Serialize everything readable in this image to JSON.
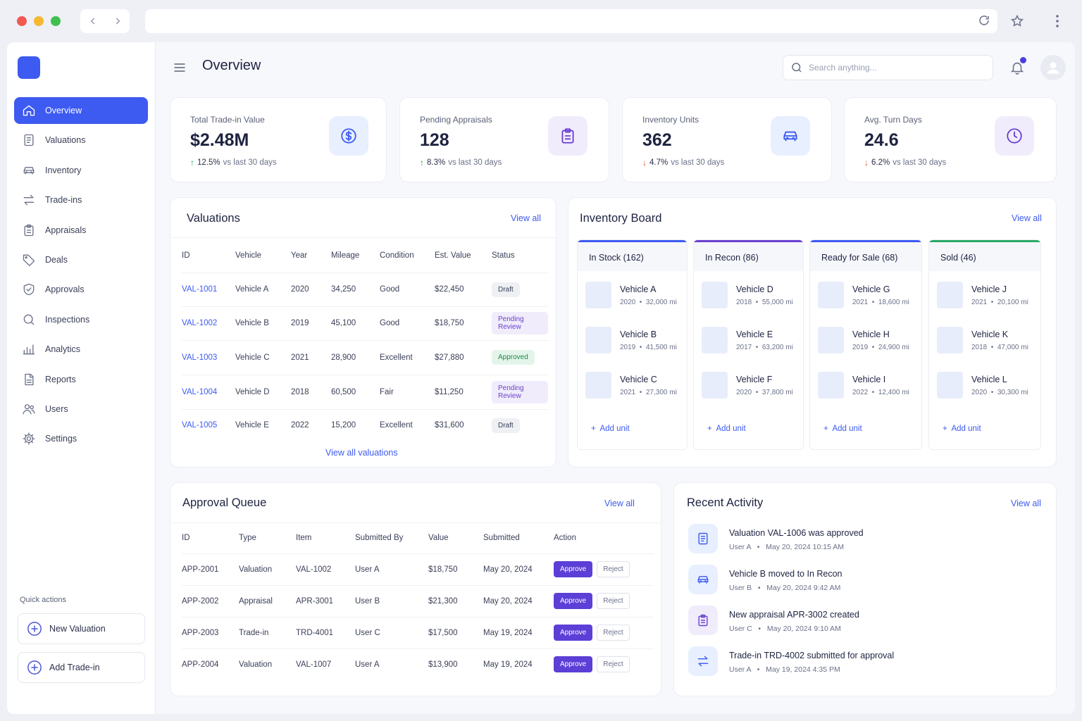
{
  "browser": {
    "url": "",
    "back_icon": "chevron-left-icon",
    "forward_icon": "chevron-right-icon",
    "reload_icon": "reload-icon",
    "bookmark_icon": "star-icon",
    "menu_icon": "kebab-icon",
    "traffic_colors": [
      "#f05a52",
      "#f5b830",
      "#3fbf4f"
    ]
  },
  "sidebar": {
    "items": [
      {
        "label": "Overview",
        "icon": "home-icon",
        "active": true
      },
      {
        "label": "Valuations",
        "icon": "document-icon"
      },
      {
        "label": "Inventory",
        "icon": "car-icon"
      },
      {
        "label": "Trade-ins",
        "icon": "swap-icon"
      },
      {
        "label": "Appraisals",
        "icon": "clipboard-icon"
      },
      {
        "label": "Deals",
        "icon": "tag-icon"
      },
      {
        "label": "Approvals",
        "icon": "shield-check-icon"
      },
      {
        "label": "Inspections",
        "icon": "search-icon"
      },
      {
        "label": "Analytics",
        "icon": "bar-chart-icon"
      },
      {
        "label": "Reports",
        "icon": "report-icon"
      },
      {
        "label": "Users",
        "icon": "users-icon"
      },
      {
        "label": "Settings",
        "icon": "gear-icon"
      }
    ],
    "quick_actions_label": "Quick actions",
    "quick_actions": [
      {
        "label": "New Valuation",
        "icon": "plus-circle-icon"
      },
      {
        "label": "Add Trade-in",
        "icon": "plus-circle-icon"
      }
    ]
  },
  "header": {
    "title": "Overview",
    "search_placeholder": "Search anything...",
    "notification_icon": "bell-icon",
    "avatar_icon": "user-icon"
  },
  "kpis": [
    {
      "label": "Total Trade-in Value",
      "value": "$2.48M",
      "delta": "12.5%",
      "direction": "up",
      "period": "vs last 30 days",
      "icon": "dollar-icon",
      "icon_bg": "#e8efff",
      "icon_color": "#3d5af1"
    },
    {
      "label": "Pending Appraisals",
      "value": "128",
      "delta": "8.3%",
      "direction": "up",
      "period": "vs last 30 days",
      "icon": "clipboard-icon",
      "icon_bg": "#f1ecfb",
      "icon_color": "#6a3fd0"
    },
    {
      "label": "Inventory Units",
      "value": "362",
      "delta": "4.7%",
      "direction": "down",
      "period": "vs last 30 days",
      "icon": "car-icon",
      "icon_bg": "#e8efff",
      "icon_color": "#3d5af1"
    },
    {
      "label": "Avg. Turn Days",
      "value": "24.6",
      "delta": "6.2%",
      "direction": "down",
      "period": "vs last 30 days",
      "icon": "clock-icon",
      "icon_bg": "#f1ecfb",
      "icon_color": "#6a3fd0"
    }
  ],
  "valuations": {
    "title": "Valuations",
    "view_all": "View all",
    "footer_link": "View all valuations",
    "columns": [
      "ID",
      "Vehicle",
      "Year",
      "Mileage",
      "Condition",
      "Est. Value",
      "Status"
    ],
    "rows": [
      {
        "id": "VAL-1001",
        "vehicle": "Vehicle A",
        "year": "2020",
        "mileage": "34,250",
        "condition": "Good",
        "value": "$22,450",
        "status": "Draft",
        "status_kind": "draft"
      },
      {
        "id": "VAL-1002",
        "vehicle": "Vehicle B",
        "year": "2019",
        "mileage": "45,100",
        "condition": "Good",
        "value": "$18,750",
        "status": "Pending Review",
        "status_kind": "pending"
      },
      {
        "id": "VAL-1003",
        "vehicle": "Vehicle C",
        "year": "2021",
        "mileage": "28,900",
        "condition": "Excellent",
        "value": "$27,880",
        "status": "Approved",
        "status_kind": "approved"
      },
      {
        "id": "VAL-1004",
        "vehicle": "Vehicle D",
        "year": "2018",
        "mileage": "60,500",
        "condition": "Fair",
        "value": "$11,250",
        "status": "Pending Review",
        "status_kind": "pending"
      },
      {
        "id": "VAL-1005",
        "vehicle": "Vehicle E",
        "year": "2022",
        "mileage": "15,200",
        "condition": "Excellent",
        "value": "$31,600",
        "status": "Draft",
        "status_kind": "draft"
      }
    ]
  },
  "inventory_board": {
    "title": "Inventory Board",
    "view_all": "View all",
    "add_unit": "Add unit",
    "columns": [
      {
        "title": "In Stock (162)",
        "color": "#3d5af1",
        "units": [
          {
            "name": "Vehicle A",
            "year": "2020",
            "miles": "32,000 mi"
          },
          {
            "name": "Vehicle B",
            "year": "2019",
            "miles": "41,500 mi"
          },
          {
            "name": "Vehicle C",
            "year": "2021",
            "miles": "27,300 mi"
          }
        ]
      },
      {
        "title": "In Recon (86)",
        "color": "#6a3fd0",
        "units": [
          {
            "name": "Vehicle D",
            "year": "2018",
            "miles": "55,000 mi"
          },
          {
            "name": "Vehicle E",
            "year": "2017",
            "miles": "63,200 mi"
          },
          {
            "name": "Vehicle F",
            "year": "2020",
            "miles": "37,800 mi"
          }
        ]
      },
      {
        "title": "Ready for Sale (68)",
        "color": "#3d5af1",
        "units": [
          {
            "name": "Vehicle G",
            "year": "2021",
            "miles": "18,600 mi"
          },
          {
            "name": "Vehicle H",
            "year": "2019",
            "miles": "24,900 mi"
          },
          {
            "name": "Vehicle I",
            "year": "2022",
            "miles": "12,400 mi"
          }
        ]
      },
      {
        "title": "Sold (46)",
        "color": "#2aa866",
        "units": [
          {
            "name": "Vehicle J",
            "year": "2021",
            "miles": "20,100 mi"
          },
          {
            "name": "Vehicle K",
            "year": "2018",
            "miles": "47,000 mi"
          },
          {
            "name": "Vehicle L",
            "year": "2020",
            "miles": "30,300 mi"
          }
        ]
      }
    ]
  },
  "approval_queue": {
    "title": "Approval Queue",
    "view_all": "View all",
    "columns": [
      "ID",
      "Type",
      "Item",
      "Submitted By",
      "Value",
      "Submitted",
      "Action"
    ],
    "approve_label": "Approve",
    "reject_label": "Reject",
    "rows": [
      {
        "id": "APP-2001",
        "type": "Valuation",
        "item": "VAL-1002",
        "by": "User A",
        "value": "$18,750",
        "submitted": "May 20, 2024"
      },
      {
        "id": "APP-2002",
        "type": "Appraisal",
        "item": "APR-3001",
        "by": "User B",
        "value": "$21,300",
        "submitted": "May 20, 2024"
      },
      {
        "id": "APP-2003",
        "type": "Trade-in",
        "item": "TRD-4001",
        "by": "User C",
        "value": "$17,500",
        "submitted": "May 19, 2024"
      },
      {
        "id": "APP-2004",
        "type": "Valuation",
        "item": "VAL-1007",
        "by": "User A",
        "value": "$13,900",
        "submitted": "May 19, 2024"
      }
    ]
  },
  "recent_activity": {
    "title": "Recent Activity",
    "view_all": "View all",
    "items": [
      {
        "text": "Valuation VAL-1006 was approved",
        "user": "User A",
        "time": "May 20, 2024 10:15 AM",
        "icon": "document-icon",
        "icon_bg": "#e8efff",
        "icon_color": "#3d5af1"
      },
      {
        "text": "Vehicle B moved to In Recon",
        "user": "User B",
        "time": "May 20, 2024 9:42 AM",
        "icon": "car-icon",
        "icon_bg": "#e8efff",
        "icon_color": "#3d5af1"
      },
      {
        "text": "New appraisal APR-3002 created",
        "user": "User C",
        "time": "May 20, 2024 9:10 AM",
        "icon": "clipboard-icon",
        "icon_bg": "#f1ecfb",
        "icon_color": "#6a3fd0"
      },
      {
        "text": "Trade-in TRD-4002 submitted for approval",
        "user": "User A",
        "time": "May 19, 2024 4:35 PM",
        "icon": "swap-icon",
        "icon_bg": "#e8efff",
        "icon_color": "#3d5af1"
      }
    ]
  },
  "colors": {
    "accent": "#3d5af1",
    "purple": "#5b3fd6",
    "up": "#1f9d55",
    "down": "#e0483d"
  }
}
